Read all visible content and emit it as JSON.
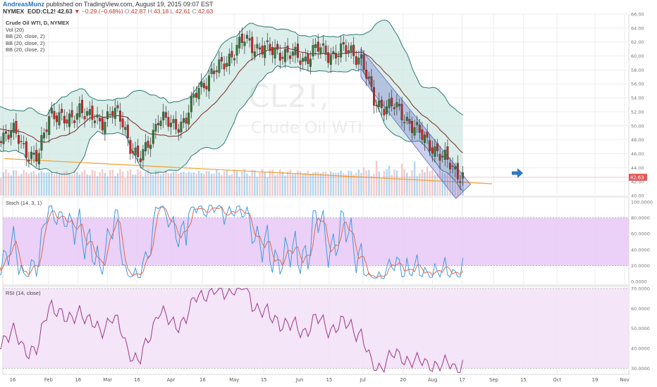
{
  "header": {
    "author": "AndreasMunz",
    "published": "published on TradingView.com, August 19, 2015 09:07 EST",
    "symbol": "NYMEX_EOD:CL2!",
    "last": "42.63",
    "change": "▼ −0.29 (−0.68%)",
    "o_label": "O:",
    "o_value": "42.87",
    "h_label": "H:",
    "h_value": "43.18",
    "l_label": "L:",
    "l_value": "42.61",
    "c_label": "C:",
    "c_value": "42.63"
  },
  "legend": {
    "title": "Crude Oil WTI, D, NYMEX",
    "vol": "Vol (20)",
    "bb1": "BB (20, close, 2)",
    "bb2": "BB (20, close, 2)",
    "bb3": "BB (20, close, 2)",
    "stoch": "Stoch (14, 3, 1)",
    "rsi": "RSI (14, close)"
  },
  "watermark": {
    "symbol": "CL2!,",
    "name": "Crude Oil WTI"
  },
  "arrow_icon": "right-arrow-icon",
  "colors": {
    "up": "#2e7d32",
    "down": "#c62828",
    "bb_fill": "#cfe8e2",
    "bb_band": "#2a7a78",
    "bb_basis": "#7a2a2a",
    "volume": "#6fb6e6",
    "trend": "#f0a030",
    "channel": "#5a64c8",
    "stoch_k": "#3e9be0",
    "stoch_d": "#e06a50",
    "stoch_fill": "#e8c8f6",
    "rsi": "#9b3a8a",
    "rsi_fill": "#f3e2f7",
    "price_tag": "#e05a5a",
    "arrow": "#2f78c4"
  },
  "chart_data": [
    {
      "type": "candlestick",
      "price_axis": {
        "ylim": [
          40,
          66
        ],
        "ticks": [
          "40.00",
          "42.00",
          "44.00",
          "46.00",
          "48.00",
          "50.00",
          "52.00",
          "54.00",
          "56.00",
          "58.00",
          "60.00",
          "62.00",
          "64.00",
          "66.00"
        ]
      },
      "last_price": "42.63",
      "x_axis": {
        "labels": [
          "16",
          "Feb",
          "16",
          "Mar",
          "16",
          "Apr",
          "16",
          "May",
          "15",
          "Jun",
          "15",
          "Jul",
          "20",
          "Aug",
          "17",
          "Sep",
          "15",
          "Oct",
          "19",
          "Nov"
        ],
        "dates": [
          "2015-01-16",
          "2015-02-02",
          "2015-02-16",
          "2015-03-02",
          "2015-03-16",
          "2015-04-01",
          "2015-04-16",
          "2015-05-01",
          "2015-05-15",
          "2015-06-01",
          "2015-06-15",
          "2015-07-01",
          "2015-07-20",
          "2015-08-03",
          "2015-08-17",
          "2015-09-01",
          "2015-09-15",
          "2015-10-01",
          "2015-10-19",
          "2015-11-02"
        ]
      },
      "closes": [
        {
          "date": "2015-01-02",
          "close": 50.5
        },
        {
          "date": "2015-01-09",
          "close": 48.6
        },
        {
          "date": "2015-01-16",
          "close": 49.1
        },
        {
          "date": "2015-01-23",
          "close": 46.3
        },
        {
          "date": "2015-01-28",
          "close": 45.2
        },
        {
          "date": "2015-02-03",
          "close": 52.4
        },
        {
          "date": "2015-02-06",
          "close": 51.6
        },
        {
          "date": "2015-02-11",
          "close": 50.1
        },
        {
          "date": "2015-02-17",
          "close": 53.0
        },
        {
          "date": "2015-02-20",
          "close": 51.2
        },
        {
          "date": "2015-02-27",
          "close": 50.7
        },
        {
          "date": "2015-03-04",
          "close": 52.0
        },
        {
          "date": "2015-03-09",
          "close": 50.6
        },
        {
          "date": "2015-03-13",
          "close": 47.2
        },
        {
          "date": "2015-03-17",
          "close": 44.8
        },
        {
          "date": "2015-03-20",
          "close": 46.5
        },
        {
          "date": "2015-03-26",
          "close": 51.2
        },
        {
          "date": "2015-04-01",
          "close": 50.0
        },
        {
          "date": "2015-04-08",
          "close": 50.8
        },
        {
          "date": "2015-04-14",
          "close": 55.4
        },
        {
          "date": "2015-04-20",
          "close": 57.3
        },
        {
          "date": "2015-04-24",
          "close": 58.2
        },
        {
          "date": "2015-04-30",
          "close": 60.5
        },
        {
          "date": "2015-05-06",
          "close": 62.2
        },
        {
          "date": "2015-05-12",
          "close": 61.3
        },
        {
          "date": "2015-05-18",
          "close": 60.6
        },
        {
          "date": "2015-05-22",
          "close": 60.8
        },
        {
          "date": "2015-05-28",
          "close": 60.0
        },
        {
          "date": "2015-06-03",
          "close": 59.6
        },
        {
          "date": "2015-06-09",
          "close": 61.0
        },
        {
          "date": "2015-06-15",
          "close": 60.3
        },
        {
          "date": "2015-06-19",
          "close": 60.5
        },
        {
          "date": "2015-06-25",
          "close": 60.8
        },
        {
          "date": "2015-06-30",
          "close": 59.8
        },
        {
          "date": "2015-07-06",
          "close": 53.5
        },
        {
          "date": "2015-07-10",
          "close": 53.0
        },
        {
          "date": "2015-07-16",
          "close": 52.6
        },
        {
          "date": "2015-07-22",
          "close": 51.0
        },
        {
          "date": "2015-07-28",
          "close": 48.6
        },
        {
          "date": "2015-08-03",
          "close": 47.2
        },
        {
          "date": "2015-08-07",
          "close": 45.5
        },
        {
          "date": "2015-08-12",
          "close": 44.3
        },
        {
          "date": "2015-08-18",
          "close": 42.63
        }
      ]
    },
    {
      "type": "line",
      "name": "Stoch (14, 3, 1)",
      "ylim": [
        0,
        100
      ],
      "ticks": [
        "0.0000",
        "20.0000",
        "40.0000",
        "60.0000",
        "80.0000",
        "100.0000"
      ],
      "bands": [
        20,
        80
      ]
    },
    {
      "type": "line",
      "name": "RSI (14, close)",
      "ylim": [
        27,
        71
      ],
      "ticks": [
        "30.0000",
        "40.0000",
        "50.0000",
        "60.0000",
        "70.0000"
      ],
      "bands": [
        30,
        70
      ]
    }
  ]
}
